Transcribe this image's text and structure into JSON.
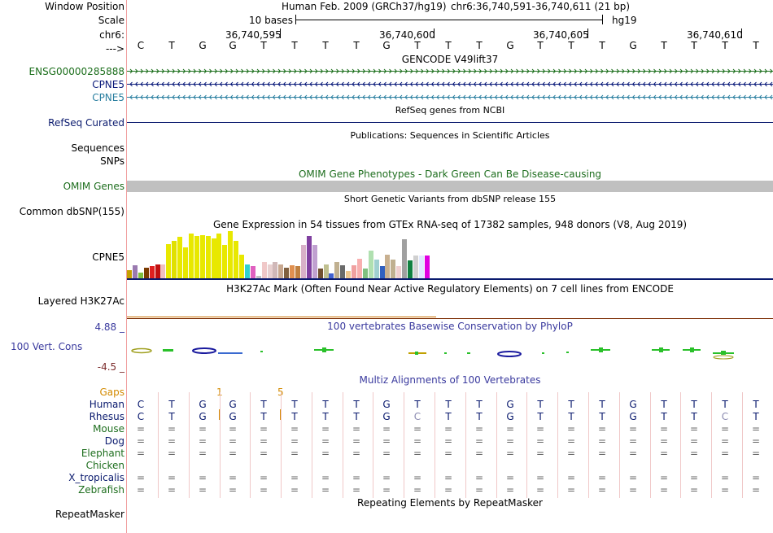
{
  "colors": {
    "gencode_green": "#1b6e1b",
    "gencode_navy": "#0a1a7a",
    "gencode_teal": "#2a7fa0",
    "refseq_navy": "#0a1a6e",
    "omim_text": "#1e6e1e",
    "omim_bar": "#c0c0c0",
    "phylop": "#3a3a9e",
    "gaps": "#d38a00",
    "separator": "#f0a0a0",
    "h3k_baseline": "#c87000"
  },
  "labels": {
    "window_position": "Window Position",
    "scale": "Scale",
    "chrom": "chr6:",
    "strand": "--->",
    "ensg": "ENSG00000285888",
    "cpne5_a": "CPNE5",
    "cpne5_b": "CPNE5",
    "refseq": "RefSeq Curated",
    "sequences": "Sequences",
    "snps": "SNPs",
    "omim_genes": "OMIM Genes",
    "common_dbsnp": "Common dbSNP(155)",
    "cpne5_gtex": "CPNE5",
    "layered": "Layered H3K27Ac",
    "phylop_max": "4.88 _",
    "vert_cons": "100 Vert. Cons",
    "phylop_min": "-4.5 _",
    "gaps": "Gaps",
    "human": "Human",
    "rhesus": "Rhesus",
    "mouse": "Mouse",
    "dog": "Dog",
    "elephant": "Elephant",
    "chicken": "Chicken",
    "x_tropicalis": "X_tropicalis",
    "zebrafish": "Zebrafish",
    "repeatmasker": "RepeatMasker"
  },
  "header": {
    "assembly": "Human Feb. 2009 (GRCh37/hg19)",
    "position": "chr6:36,740,591-36,740,611 (21 bp)",
    "scale_text": "10 bases",
    "scale_db": "hg19",
    "coords": [
      "36,740,595",
      "36,740,600",
      "36,740,605",
      "36,740,610"
    ]
  },
  "sequence": [
    "C",
    "T",
    "G",
    "G",
    "T",
    "T",
    "T",
    "T",
    "G",
    "T",
    "T",
    "T",
    "G",
    "T",
    "T",
    "T",
    "G",
    "T",
    "T",
    "T",
    "T"
  ],
  "tracks": {
    "gencode_title": "GENCODE V49lift37",
    "refseq_title": "RefSeq genes from NCBI",
    "publications_title": "Publications: Sequences in Scientific Articles",
    "omim_title": "OMIM Gene Phenotypes - Dark Green Can Be Disease-causing",
    "dbsnp_title": "Short Genetic Variants from dbSNP release 155",
    "gtex_title": "Gene Expression in 54 tissues from GTEx RNA-seq of 17382 samples, 948 donors (V8, Aug 2019)",
    "h3k_title": "H3K27Ac Mark (Often Found Near Active Regulatory Elements) on 7 cell lines from ENCODE",
    "phylop_title": "100 vertebrates Basewise Conservation by PhyloP",
    "multiz_title": "Multiz Alignments of 100 Vertebrates",
    "repeat_title": "Repeating Elements by RepeatMasker"
  },
  "gaps_marks": [
    "1",
    "5"
  ],
  "rhesus_seq": [
    "C",
    "T",
    "G",
    "G",
    "T",
    "T",
    "T",
    "T",
    "G",
    "C",
    "T",
    "T",
    "G",
    "T",
    "T",
    "T",
    "G",
    "T",
    "T",
    "C",
    "T"
  ],
  "gtex_bars": [
    {
      "v": 0.18,
      "c": "#c5a000"
    },
    {
      "v": 0.28,
      "c": "#9a7ab0"
    },
    {
      "v": 0.12,
      "c": "#7fbf3f"
    },
    {
      "v": 0.22,
      "c": "#7a3a00"
    },
    {
      "v": 0.25,
      "c": "#e02020"
    },
    {
      "v": 0.3,
      "c": "#c01010"
    },
    {
      "v": 0.3,
      "c": "#f0c0c0"
    },
    {
      "v": 0.72,
      "c": "#e8e800"
    },
    {
      "v": 0.8,
      "c": "#e0e000"
    },
    {
      "v": 0.88,
      "c": "#e8e800"
    },
    {
      "v": 0.65,
      "c": "#e8e800"
    },
    {
      "v": 0.95,
      "c": "#e8e800"
    },
    {
      "v": 0.9,
      "c": "#e8e800"
    },
    {
      "v": 0.92,
      "c": "#e8e800"
    },
    {
      "v": 0.9,
      "c": "#e8e800"
    },
    {
      "v": 0.85,
      "c": "#e8e800"
    },
    {
      "v": 0.95,
      "c": "#e8e800"
    },
    {
      "v": 0.7,
      "c": "#e8e800"
    },
    {
      "v": 1.0,
      "c": "#e8e800"
    },
    {
      "v": 0.8,
      "c": "#e8e800"
    },
    {
      "v": 0.5,
      "c": "#e8e800"
    },
    {
      "v": 0.3,
      "c": "#30d0d0"
    },
    {
      "v": 0.25,
      "c": "#e060c0"
    },
    {
      "v": 0.05,
      "c": "#c0c0c0"
    },
    {
      "v": 0.35,
      "c": "#f0c8c8"
    },
    {
      "v": 0.3,
      "c": "#e8d0d0"
    },
    {
      "v": 0.35,
      "c": "#d0b8b8"
    },
    {
      "v": 0.3,
      "c": "#c8a890"
    },
    {
      "v": 0.22,
      "c": "#806040"
    },
    {
      "v": 0.28,
      "c": "#e09050"
    },
    {
      "v": 0.25,
      "c": "#c08040"
    },
    {
      "v": 0.7,
      "c": "#d8b0c8"
    },
    {
      "v": 0.9,
      "c": "#8040a0"
    },
    {
      "v": 0.7,
      "c": "#c0a0d0"
    },
    {
      "v": 0.2,
      "c": "#705030"
    },
    {
      "v": 0.3,
      "c": "#c0c090"
    },
    {
      "v": 0.1,
      "c": "#4060d0"
    },
    {
      "v": 0.35,
      "c": "#c0b090"
    },
    {
      "v": 0.28,
      "c": "#6a6a6a"
    },
    {
      "v": 0.15,
      "c": "#f0c890"
    },
    {
      "v": 0.28,
      "c": "#f0a0a0"
    },
    {
      "v": 0.42,
      "c": "#f8b0b0"
    },
    {
      "v": 0.2,
      "c": "#80c080"
    },
    {
      "v": 0.58,
      "c": "#b0e0b0"
    },
    {
      "v": 0.4,
      "c": "#a0d0d0"
    },
    {
      "v": 0.25,
      "c": "#3060c0"
    },
    {
      "v": 0.5,
      "c": "#c8b090"
    },
    {
      "v": 0.4,
      "c": "#c0b090"
    },
    {
      "v": 0.25,
      "c": "#f0d0d0"
    },
    {
      "v": 0.82,
      "c": "#a0a0a0"
    },
    {
      "v": 0.38,
      "c": "#108040"
    },
    {
      "v": 0.48,
      "c": "#d0d0d0"
    },
    {
      "v": 0.48,
      "c": "#e0e8ff"
    },
    {
      "v": 0.48,
      "c": "#e000e0"
    }
  ]
}
